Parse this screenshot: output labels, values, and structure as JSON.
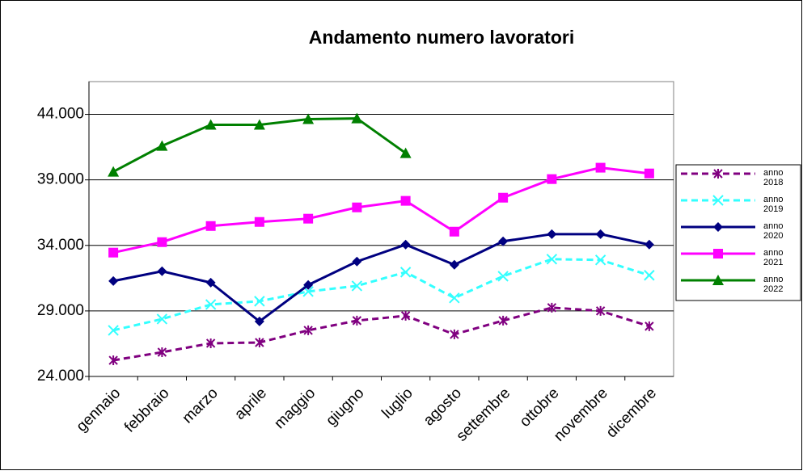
{
  "chart_data": {
    "type": "line",
    "title": "Andamento numero lavoratori",
    "categories": [
      "gennaio",
      "febbraio",
      "marzo",
      "aprile",
      "maggio",
      "giugno",
      "luglio",
      "agosto",
      "settembre",
      "ottobre",
      "novembre",
      "dicembre"
    ],
    "series": [
      {
        "name": "anno 2018",
        "color": "#800080",
        "dash": true,
        "marker": "star",
        "values": [
          25230,
          25850,
          26530,
          26590,
          27520,
          28260,
          28630,
          27210,
          28260,
          29250,
          29000,
          27830
        ]
      },
      {
        "name": "anno 2019",
        "color": "#33ffff",
        "dash": true,
        "marker": "x",
        "values": [
          27520,
          28380,
          29490,
          29740,
          30480,
          30910,
          31960,
          29990,
          31650,
          32950,
          32890,
          31720
        ]
      },
      {
        "name": "anno 2020",
        "color": "#000080",
        "dash": false,
        "marker": "diamond",
        "values": [
          31280,
          32030,
          31160,
          28200,
          30980,
          32770,
          34060,
          32520,
          34310,
          34860,
          34860,
          34060
        ]
      },
      {
        "name": "anno 2021",
        "color": "#ff00ff",
        "dash": false,
        "marker": "square",
        "values": [
          33450,
          34250,
          35480,
          35790,
          36040,
          36900,
          37400,
          35050,
          37640,
          39060,
          39930,
          39490
        ]
      },
      {
        "name": "anno 2022",
        "color": "#008000",
        "dash": false,
        "marker": "triangle",
        "values": [
          39620,
          41590,
          43200,
          43200,
          43630,
          43690,
          41040,
          null,
          null,
          null,
          null,
          null
        ]
      }
    ],
    "ylim": [
      24000,
      46500
    ],
    "yticks": [
      {
        "value": 24000,
        "label": "24.000"
      },
      {
        "value": 29000,
        "label": "29.000"
      },
      {
        "value": 34000,
        "label": "34.000"
      },
      {
        "value": 39000,
        "label": "39.000"
      },
      {
        "value": 44000,
        "label": "44.000"
      }
    ],
    "grid": true,
    "legend": "right"
  }
}
